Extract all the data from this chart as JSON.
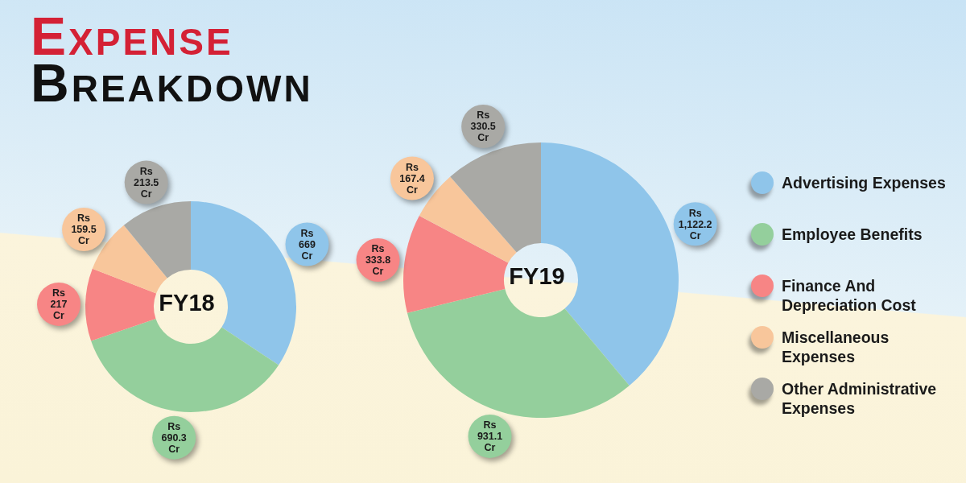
{
  "chart_data": [
    {
      "type": "donut",
      "title": "Expense Breakdown",
      "annotations": [
        "FY18"
      ],
      "categories": [
        null,
        null,
        null,
        null,
        null
      ],
      "values": [
        669,
        690.3,
        217,
        159.5,
        213.5
      ],
      "colors": [
        "#8fc5ea",
        "#94cf9c",
        "#f78585",
        "#f8c69b",
        "#a9a9a5"
      ],
      "value_labels": [
        "Rs 669 Cr",
        "Rs 690.3 Cr",
        "Rs 217 Cr",
        "Rs 159.5 Cr",
        "Rs 213.5 Cr"
      ]
    },
    {
      "type": "donut",
      "annotations": [
        "FY19"
      ],
      "categories": [
        "Advertising Expenses",
        "Employee Benefits",
        "Finance And Depreciation Cost",
        "Miscellaneous Expenses",
        "Other Administrative Expenses"
      ],
      "values": [
        1122.2,
        931.1,
        333.8,
        167.4,
        330.5
      ],
      "colors": [
        "#8fc5ea",
        "#94cf9c",
        "#f78585",
        "#f8c69b",
        "#a9a9a5"
      ],
      "value_labels": [
        "Rs 1,122.2 Cr",
        "Rs 931.1 Cr",
        "Rs 333.8 Cr",
        "Rs 167.4 Cr",
        "Rs 330.5 Cr"
      ],
      "legend": "right"
    }
  ]
}
